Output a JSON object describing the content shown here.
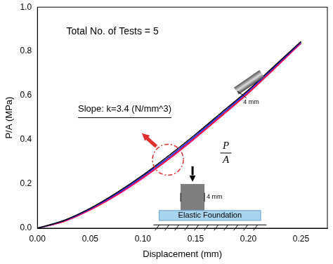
{
  "chart_data": {
    "type": "line",
    "x_label": "Displacement (mm)",
    "y_label": "P/A (MPa)",
    "x": [
      0,
      0.025,
      0.05,
      0.075,
      0.1,
      0.125,
      0.15,
      0.175,
      0.2,
      0.225,
      0.25
    ],
    "series": [
      {
        "color": "#000000",
        "values": [
          0,
          0.035,
          0.09,
          0.16,
          0.24,
          0.33,
          0.425,
          0.525,
          0.625,
          0.735,
          0.845
        ]
      },
      {
        "color": "#2020ff",
        "values": [
          0,
          0.033,
          0.087,
          0.155,
          0.235,
          0.322,
          0.418,
          0.518,
          0.62,
          0.73,
          0.842
        ]
      },
      {
        "color": "#ff2020",
        "values": [
          0,
          0.03,
          0.083,
          0.15,
          0.228,
          0.315,
          0.41,
          0.51,
          0.612,
          0.724,
          0.838
        ]
      },
      {
        "color": "#ff00ff",
        "values": [
          0,
          0.03,
          0.082,
          0.148,
          0.226,
          0.313,
          0.408,
          0.508,
          0.61,
          0.722,
          0.836
        ]
      },
      {
        "color": "#8040c0",
        "values": [
          0,
          0.031,
          0.084,
          0.151,
          0.229,
          0.316,
          0.412,
          0.512,
          0.614,
          0.726,
          0.84
        ]
      }
    ],
    "xlim": [
      0,
      0.275
    ],
    "xticks": [
      {
        "value": 0,
        "label": "0.00"
      },
      {
        "value": 0.05,
        "label": "0.05"
      },
      {
        "value": 0.1,
        "label": "0.10"
      },
      {
        "value": 0.15,
        "label": "0.15"
      },
      {
        "value": 0.2,
        "label": "0.20"
      },
      {
        "value": 0.25,
        "label": "0.25"
      }
    ],
    "ylim": [
      0,
      1
    ],
    "yticks": [
      {
        "value": 0,
        "label": "0.0"
      },
      {
        "value": 0.2,
        "label": "0.2"
      },
      {
        "value": 0.4,
        "label": "0.4"
      },
      {
        "value": 0.6,
        "label": "0.6"
      },
      {
        "value": 0.8,
        "label": "0.8"
      },
      {
        "value": 1,
        "label": "1.0"
      }
    ],
    "grid": false,
    "annotations": [
      "Total No. of Tests = 5",
      "Slope: k=3.4 (N/mm^3)"
    ],
    "inset": {
      "load_label": "P/A",
      "width_label": "4 mm",
      "foundation_label": "Elastic Foundation",
      "photo_label": "4 mm"
    }
  }
}
